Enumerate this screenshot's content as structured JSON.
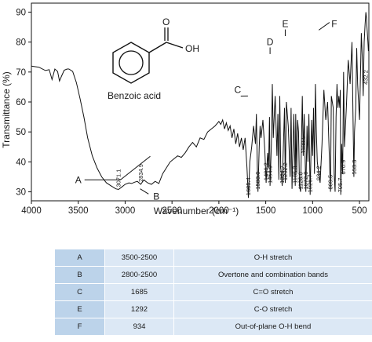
{
  "chart_data": {
    "type": "line",
    "title": "",
    "xlabel": "Wavenumber (cm⁻¹)",
    "ylabel": "Transmittance (%)",
    "xlim": [
      4000,
      400
    ],
    "ylim": [
      27,
      93
    ],
    "x_reversed": true,
    "grid": false,
    "x_ticks": [
      4000,
      3500,
      3000,
      2500,
      2000,
      1500,
      1000,
      500
    ],
    "y_ticks": [
      30,
      40,
      50,
      60,
      70,
      80,
      90
    ],
    "series": [
      {
        "name": "",
        "color": "#111111",
        "x": [
          4000,
          3920,
          3850,
          3810,
          3780,
          3750,
          3720,
          3700,
          3680,
          3650,
          3620,
          3600,
          3560,
          3520,
          3480,
          3440,
          3400,
          3350,
          3300,
          3250,
          3200,
          3150,
          3100,
          3071,
          3040,
          3000,
          2960,
          2930,
          2900,
          2870,
          2834,
          2800,
          2760,
          2720,
          2680,
          2640,
          2600,
          2560,
          2520,
          2480,
          2440,
          2400,
          2360,
          2320,
          2280,
          2240,
          2200,
          2160,
          2120,
          2080,
          2040,
          2000,
          1980,
          1960,
          1940,
          1920,
          1900,
          1880,
          1860,
          1840,
          1820,
          1800,
          1780,
          1760,
          1740,
          1720,
          1700,
          1685,
          1670,
          1650,
          1630,
          1610,
          1600,
          1590,
          1583,
          1570,
          1560,
          1550,
          1530,
          1510,
          1496,
          1480,
          1470,
          1460,
          1454,
          1440,
          1430,
          1420,
          1400,
          1380,
          1370,
          1360,
          1350,
          1340,
          1324,
          1300,
          1292,
          1280,
          1260,
          1240,
          1230,
          1220,
          1200,
          1185,
          1180,
          1170,
          1160,
          1150,
          1140,
          1128,
          1110,
          1100,
          1090,
          1072,
          1060,
          1050,
          1040,
          1026,
          1010,
          1000,
          990,
          980,
          970,
          960,
          950,
          934,
          920,
          900,
          880,
          860,
          840,
          809,
          800,
          780,
          770,
          760,
          750,
          740,
          730,
          720,
          710,
          705,
          700,
          690,
          680,
          670,
          660,
          640,
          620,
          600,
          580,
          570,
          560,
          553,
          540,
          530,
          520,
          500,
          480,
          470,
          460,
          450,
          440,
          432,
          425,
          420,
          410,
          405
        ],
        "values": [
          72,
          71.6,
          70.5,
          70.8,
          67.5,
          71,
          70.2,
          67,
          68.5,
          70.6,
          71,
          71,
          70.2,
          66.5,
          61,
          55,
          48,
          42,
          38,
          35,
          33,
          32,
          31,
          30.8,
          31.5,
          32.5,
          33,
          32.8,
          33.2,
          33.5,
          32.5,
          34,
          33,
          32.5,
          33.5,
          32.8,
          36,
          38,
          40,
          41,
          42,
          41.5,
          43,
          45,
          46.5,
          45,
          48,
          47.5,
          50,
          51,
          52,
          53.5,
          52.5,
          54,
          51,
          53,
          50.5,
          52,
          48,
          51,
          46,
          49.5,
          45,
          48,
          44,
          48,
          38,
          28,
          40,
          45,
          52,
          46,
          56,
          38,
          30,
          45,
          52,
          48,
          54,
          44,
          33,
          43,
          38,
          55,
          32,
          46,
          66,
          48,
          62,
          42,
          56,
          34,
          62,
          38,
          32,
          58,
          33,
          60,
          52,
          35,
          58,
          31,
          56,
          32,
          56,
          36,
          54,
          50,
          32,
          30,
          62,
          42,
          56,
          30,
          52,
          40,
          56,
          29,
          54,
          42,
          58,
          36,
          66,
          50,
          40,
          36,
          33,
          46,
          64,
          54,
          60,
          30,
          62,
          58,
          36,
          30,
          55,
          66,
          58,
          62,
          58,
          64,
          29,
          46,
          36,
          70,
          45,
          58,
          74,
          66,
          80,
          57,
          35,
          50,
          58,
          78,
          66,
          54,
          83,
          75,
          62,
          80,
          86,
          90,
          88,
          85,
          80,
          77
        ]
      }
    ],
    "peak_labels": [
      {
        "x": 3071,
        "y": 30.8,
        "text": "3071.1"
      },
      {
        "x": 2834,
        "y": 32.5,
        "text": "2834.9"
      },
      {
        "x": 1685,
        "y": 28,
        "text": "1685.4"
      },
      {
        "x": 1583,
        "y": 30,
        "text": "1583.0"
      },
      {
        "x": 1496,
        "y": 33,
        "text": "1496.2"
      },
      {
        "x": 1454,
        "y": 32,
        "text": "1454.0"
      },
      {
        "x": 1324,
        "y": 32,
        "text": "1324.7"
      },
      {
        "x": 1292,
        "y": 33,
        "text": "1292.2"
      },
      {
        "x": 1185,
        "y": 32,
        "text": "1185.3"
      },
      {
        "x": 1128,
        "y": 30,
        "text": "1128.0"
      },
      {
        "x": 1100,
        "y": 42,
        "text": "1100.5"
      },
      {
        "x": 1072,
        "y": 30,
        "text": "1072.0"
      },
      {
        "x": 1026,
        "y": 29,
        "text": "1026.7"
      },
      {
        "x": 934,
        "y": 33,
        "text": "934.2"
      },
      {
        "x": 809,
        "y": 30,
        "text": "809.5"
      },
      {
        "x": 705,
        "y": 29,
        "text": "705.7"
      },
      {
        "x": 670,
        "y": 35,
        "text": "670.9"
      },
      {
        "x": 553,
        "y": 35,
        "text": "553.3"
      },
      {
        "x": 432,
        "y": 65,
        "text": "432.2"
      }
    ],
    "annotations": [
      {
        "letter": "A",
        "x": 3050,
        "y": 34,
        "text_pos": [
          3500,
          34
        ]
      },
      {
        "letter": "B",
        "x": 2840,
        "y": 31,
        "text_pos": [
          2700,
          28.5
        ]
      },
      {
        "letter": "C",
        "x": 1690,
        "y": 62,
        "text_pos": [
          1800,
          63
        ]
      },
      {
        "letter": "D",
        "x": 1454,
        "y": 76,
        "text_pos": [
          1454,
          79
        ]
      },
      {
        "letter": "E",
        "x": 1292,
        "y": 82,
        "text_pos": [
          1292,
          85
        ]
      },
      {
        "letter": "F",
        "x": 934,
        "y": 84,
        "text_pos": [
          870,
          85
        ]
      }
    ],
    "molecule": {
      "name": "Benzoic acid",
      "carbonyl_o": "O",
      "hydroxyl": "OH"
    }
  },
  "table": {
    "rows": [
      {
        "band": "A",
        "range": "3500-2500",
        "assignment": "O-H stretch"
      },
      {
        "band": "B",
        "range": "2800-2500",
        "assignment": "Overtone and combination bands"
      },
      {
        "band": "C",
        "range": "1685",
        "assignment": "C=O stretch"
      },
      {
        "band": "E",
        "range": "1292",
        "assignment": "C-O stretch"
      },
      {
        "band": "F",
        "range": "934",
        "assignment": "Out-of-plane O-H bend"
      }
    ]
  }
}
